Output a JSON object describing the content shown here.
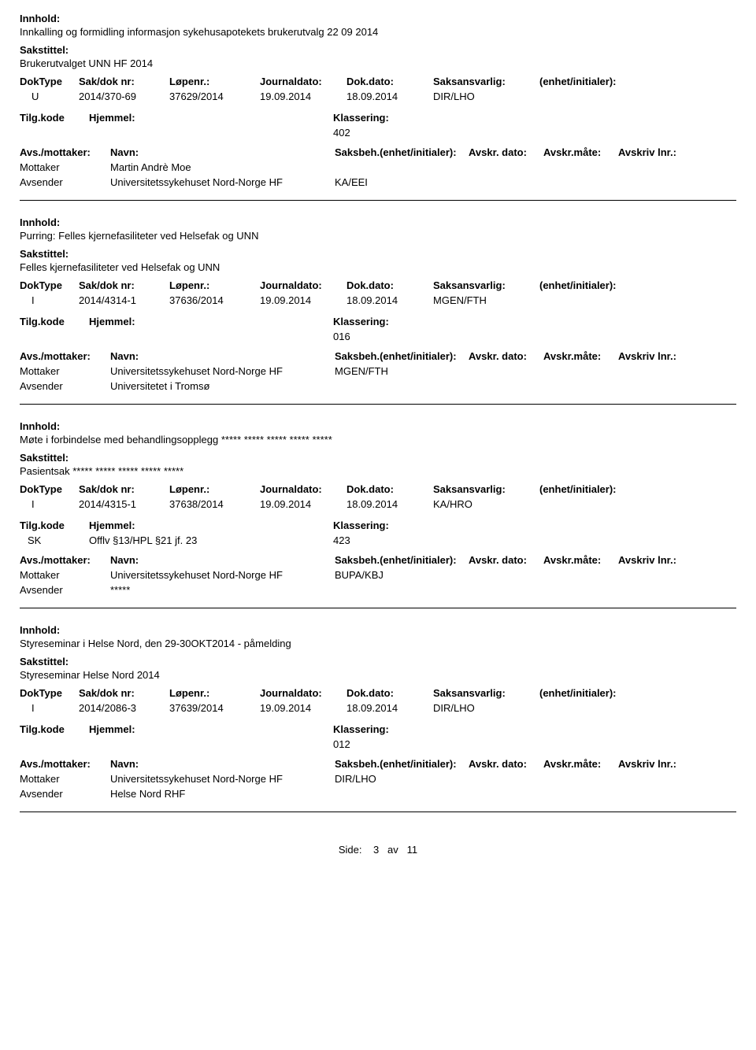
{
  "labels": {
    "innhold": "Innhold:",
    "sakstittel": "Sakstittel:",
    "doktype": "DokType",
    "sakdok": "Sak/dok nr:",
    "lopenr": "Løpenr.:",
    "journal": "Journaldato:",
    "dokdato": "Dok.dato:",
    "saksansv": "Saksansvarlig:",
    "enhet": "(enhet/initialer):",
    "tilgkode": "Tilg.kode",
    "hjemmel": "Hjemmel:",
    "klassering": "Klassering:",
    "avsmottaker": "Avs./mottaker:",
    "navn": "Navn:",
    "saksbeh": "Saksbeh.(enhet/initialer):",
    "avskrdato": "Avskr. dato:",
    "avskrmate": "Avskr.måte:",
    "avskrivlnr": "Avskriv lnr.:",
    "mottaker": "Mottaker",
    "avsender": "Avsender"
  },
  "records": [
    {
      "innhold": "Innkalling og formidling informasjon sykehusapotekets brukerutvalg 22 09 2014",
      "sakstittel": "Brukerutvalget UNN HF 2014",
      "doktype": "U",
      "sakdok": "2014/370-69",
      "lopenr": "37629/2014",
      "journal": "19.09.2014",
      "dokdato": "18.09.2014",
      "saksansv": "DIR/LHO",
      "tilg": "",
      "hjemmel": "",
      "klass": "402",
      "parties": [
        {
          "role": "Mottaker",
          "name": "Martin Andrè Moe",
          "code": ""
        },
        {
          "role": "Avsender",
          "name": "Universitetssykehuset Nord-Norge HF",
          "code": "KA/EEI"
        }
      ]
    },
    {
      "innhold": "Purring: Felles kjernefasiliteter ved Helsefak og UNN",
      "sakstittel": "Felles kjernefasiliteter ved Helsefak og UNN",
      "doktype": "I",
      "sakdok": "2014/4314-1",
      "lopenr": "37636/2014",
      "journal": "19.09.2014",
      "dokdato": "18.09.2014",
      "saksansv": "MGEN/FTH",
      "tilg": "",
      "hjemmel": "",
      "klass": "016",
      "parties": [
        {
          "role": "Mottaker",
          "name": "Universitetssykehuset Nord-Norge HF",
          "code": "MGEN/FTH"
        },
        {
          "role": "Avsender",
          "name": "Universitetet i Tromsø",
          "code": ""
        }
      ]
    },
    {
      "innhold": "Møte i forbindelse med behandlingsopplegg ***** ***** ***** ***** *****",
      "sakstittel": "Pasientsak ***** ***** ***** ***** *****",
      "doktype": "I",
      "sakdok": "2014/4315-1",
      "lopenr": "37638/2014",
      "journal": "19.09.2014",
      "dokdato": "18.09.2014",
      "saksansv": "KA/HRO",
      "tilg": "SK",
      "hjemmel": "Offlv §13/HPL §21 jf. 23",
      "klass": "423",
      "parties": [
        {
          "role": "Mottaker",
          "name": "Universitetssykehuset Nord-Norge HF",
          "code": "BUPA/KBJ"
        },
        {
          "role": "Avsender",
          "name": "*****",
          "code": ""
        }
      ]
    },
    {
      "innhold": "Styreseminar i Helse Nord, den 29-30OKT2014 - påmelding",
      "sakstittel": "Styreseminar Helse Nord 2014",
      "doktype": "I",
      "sakdok": "2014/2086-3",
      "lopenr": "37639/2014",
      "journal": "19.09.2014",
      "dokdato": "18.09.2014",
      "saksansv": "DIR/LHO",
      "tilg": "",
      "hjemmel": "",
      "klass": "012",
      "parties": [
        {
          "role": "Mottaker",
          "name": "Universitetssykehuset Nord-Norge HF",
          "code": "DIR/LHO"
        },
        {
          "role": "Avsender",
          "name": "Helse Nord RHF",
          "code": ""
        }
      ]
    }
  ],
  "footer": {
    "side": "Side:",
    "page": "3",
    "av": "av",
    "total": "11"
  }
}
